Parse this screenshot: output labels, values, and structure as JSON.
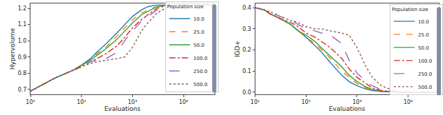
{
  "chart_data": [
    {
      "type": "line",
      "xlabel": "Evaluations",
      "ylabel": "Hypervolume",
      "log": "x",
      "grid": false,
      "legend": "lower right",
      "legend_title": "Population size",
      "xlim": [
        10,
        40000
      ],
      "xticks": [
        {
          "value": 10,
          "label": "10¹"
        },
        {
          "value": 100,
          "label": "10²"
        },
        {
          "value": 1000,
          "label": "10³"
        },
        {
          "value": 10000,
          "label": "10⁴"
        }
      ],
      "ylim": [
        0.67,
        1.23
      ],
      "yticks": [
        0.7,
        0.8,
        0.9,
        {
          "value": 1.0,
          "label": "1.0"
        },
        1.1,
        1.2
      ],
      "x": [
        10,
        15,
        20,
        30,
        50,
        70,
        100,
        150,
        200,
        300,
        500,
        700,
        1000,
        1500,
        2000,
        3000,
        5000,
        7000,
        10000,
        20000,
        40000
      ],
      "series": [
        {
          "name": "10.0",
          "color": "#1f77b4",
          "line_style": "solid",
          "values": [
            0.69,
            0.72,
            0.74,
            0.77,
            0.8,
            0.82,
            0.85,
            0.89,
            0.93,
            0.98,
            1.05,
            1.1,
            1.15,
            1.19,
            1.21,
            1.22,
            1.22,
            1.22,
            1.22,
            1.22,
            1.22
          ]
        },
        {
          "name": "25.0",
          "color": "#ff7f0e",
          "line_style": "dashed",
          "values": [
            0.69,
            0.72,
            0.74,
            0.77,
            0.8,
            0.82,
            0.85,
            0.88,
            0.92,
            0.96,
            1.03,
            1.08,
            1.13,
            1.17,
            1.19,
            1.21,
            1.22,
            1.22,
            1.22,
            1.22,
            1.22
          ]
        },
        {
          "name": "50.0",
          "color": "#2ca02c",
          "line_style": "solid",
          "values": [
            0.69,
            0.72,
            0.74,
            0.77,
            0.8,
            0.82,
            0.85,
            0.88,
            0.91,
            0.95,
            1.01,
            1.06,
            1.11,
            1.16,
            1.18,
            1.21,
            1.22,
            1.22,
            1.22,
            1.22,
            1.22
          ]
        },
        {
          "name": "100.0",
          "color": "#d62728",
          "line_style": "dashdot",
          "values": [
            0.69,
            0.72,
            0.74,
            0.77,
            0.8,
            0.82,
            0.84,
            0.87,
            0.89,
            0.92,
            0.97,
            1.02,
            1.08,
            1.13,
            1.16,
            1.2,
            1.22,
            1.22,
            1.22,
            1.22,
            1.22
          ]
        },
        {
          "name": "250.0",
          "color": "#9467bd",
          "line_style": "longdash",
          "values": [
            0.69,
            0.72,
            0.74,
            0.77,
            0.8,
            0.82,
            0.84,
            0.87,
            0.88,
            0.89,
            0.93,
            1.0,
            1.06,
            1.12,
            1.15,
            1.19,
            1.21,
            1.22,
            1.22,
            1.22,
            1.22
          ]
        },
        {
          "name": "500.0",
          "color": "#8c564b",
          "line_style": "dotted",
          "values": [
            0.69,
            0.72,
            0.74,
            0.77,
            0.8,
            0.82,
            0.84,
            0.86,
            0.87,
            0.88,
            0.89,
            0.9,
            0.96,
            1.06,
            1.11,
            1.17,
            1.21,
            1.22,
            1.22,
            1.22,
            1.22
          ]
        }
      ]
    },
    {
      "type": "line",
      "xlabel": "Evaluations",
      "ylabel": "IGD+",
      "log": "x",
      "grid": false,
      "legend": "upper right",
      "legend_title": "Population size",
      "xlim": [
        10,
        40000
      ],
      "xticks": [
        {
          "value": 10,
          "label": "10¹"
        },
        {
          "value": 100,
          "label": "10²"
        },
        {
          "value": 1000,
          "label": "10³"
        },
        {
          "value": 10000,
          "label": "10⁴"
        }
      ],
      "ylim": [
        -0.01,
        0.42
      ],
      "yticks": [
        {
          "value": 0,
          "label": "0.0"
        },
        0.1,
        0.2,
        0.3,
        0.4
      ],
      "x": [
        10,
        15,
        20,
        30,
        50,
        70,
        100,
        150,
        200,
        300,
        500,
        700,
        1000,
        1500,
        2000,
        3000,
        5000,
        7000,
        10000,
        20000,
        40000
      ],
      "series": [
        {
          "name": "10.0",
          "color": "#1f77b4",
          "line_style": "solid",
          "values": [
            0.4,
            0.39,
            0.37,
            0.35,
            0.32,
            0.29,
            0.26,
            0.22,
            0.19,
            0.14,
            0.08,
            0.05,
            0.03,
            0.015,
            0.008,
            0.003,
            0.001,
            0,
            0,
            0,
            0
          ]
        },
        {
          "name": "25.0",
          "color": "#ff7f0e",
          "line_style": "dashed",
          "values": [
            0.4,
            0.39,
            0.37,
            0.35,
            0.32,
            0.29,
            0.26,
            0.23,
            0.2,
            0.16,
            0.1,
            0.07,
            0.04,
            0.02,
            0.01,
            0.004,
            0.001,
            0,
            0,
            0,
            0
          ]
        },
        {
          "name": "50.0",
          "color": "#2ca02c",
          "line_style": "solid",
          "values": [
            0.4,
            0.39,
            0.37,
            0.35,
            0.32,
            0.29,
            0.27,
            0.24,
            0.21,
            0.17,
            0.12,
            0.08,
            0.05,
            0.025,
            0.013,
            0.005,
            0.002,
            0.001,
            0,
            0,
            0
          ]
        },
        {
          "name": "100.0",
          "color": "#d62728",
          "line_style": "dashdot",
          "values": [
            0.4,
            0.39,
            0.37,
            0.35,
            0.33,
            0.31,
            0.28,
            0.26,
            0.24,
            0.21,
            0.16,
            0.11,
            0.07,
            0.04,
            0.02,
            0.008,
            0.003,
            0.001,
            0,
            0,
            0
          ]
        },
        {
          "name": "250.0",
          "color": "#9467bd",
          "line_style": "longdash",
          "values": [
            0.4,
            0.39,
            0.38,
            0.36,
            0.34,
            0.32,
            0.3,
            0.29,
            0.28,
            0.27,
            0.23,
            0.15,
            0.09,
            0.05,
            0.03,
            0.012,
            0.004,
            0.001,
            0,
            0,
            0
          ]
        },
        {
          "name": "500.0",
          "color": "#8c564b",
          "line_style": "dotted",
          "values": [
            0.4,
            0.39,
            0.38,
            0.36,
            0.34,
            0.33,
            0.31,
            0.3,
            0.3,
            0.29,
            0.28,
            0.27,
            0.21,
            0.12,
            0.07,
            0.03,
            0.01,
            0.003,
            0.001,
            0,
            0
          ]
        }
      ]
    }
  ]
}
